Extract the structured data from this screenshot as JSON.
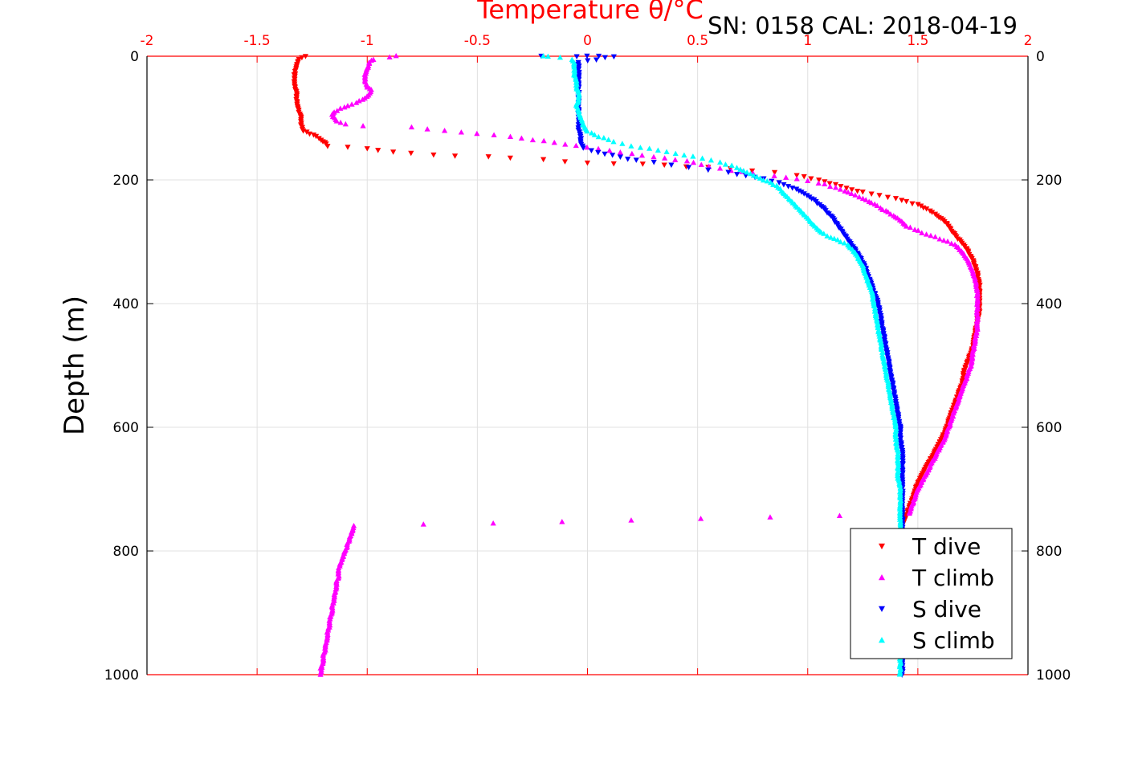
{
  "chart_data": {
    "type": "scatter",
    "title": "SN: 0158  CAL: 2018-04-19",
    "xlabel": "Temperature θ/°C",
    "ylabel": "Depth (m)",
    "xlim": [
      -2,
      2
    ],
    "ylim": [
      1000,
      0
    ],
    "x_axis_position": "top",
    "y_axis_reversed": true,
    "grid": true,
    "legend_position": "bottom-right",
    "xticks": [
      "-2",
      "-1.5",
      "-1",
      "-0.5",
      "0",
      "0.5",
      "1",
      "1.5",
      "2"
    ],
    "yticks": [
      "0",
      "200",
      "400",
      "600",
      "800",
      "1000"
    ],
    "colors": {
      "axis_x": "#ff0000",
      "axis_y": "#000000",
      "grid": "#e0e0e0"
    },
    "series": [
      {
        "name": "T dive",
        "marker": "triangle-down",
        "color": "#ff0000",
        "points": [
          [
            -1.28,
            0
          ],
          [
            -1.31,
            5
          ],
          [
            -1.32,
            15
          ],
          [
            -1.33,
            30
          ],
          [
            -1.33,
            45
          ],
          [
            -1.32,
            60
          ],
          [
            -1.32,
            75
          ],
          [
            -1.31,
            90
          ],
          [
            -1.3,
            100
          ],
          [
            -1.3,
            110
          ],
          [
            -1.29,
            120
          ],
          [
            -1.26,
            125
          ],
          [
            -1.23,
            130
          ],
          [
            -1.21,
            135
          ],
          [
            -1.19,
            140
          ],
          [
            -1.18,
            145
          ],
          [
            -1.0,
            150
          ],
          [
            -0.95,
            152
          ],
          [
            -0.88,
            155
          ],
          [
            -0.8,
            157
          ],
          [
            -0.7,
            160
          ],
          [
            -0.6,
            162
          ],
          [
            -0.45,
            163
          ],
          [
            -0.35,
            165
          ],
          [
            -0.2,
            167
          ],
          [
            -0.1,
            170
          ],
          [
            0.0,
            172
          ],
          [
            0.12,
            173
          ],
          [
            0.25,
            174
          ],
          [
            0.35,
            176
          ],
          [
            0.45,
            178
          ],
          [
            0.55,
            180
          ],
          [
            0.65,
            182
          ],
          [
            0.75,
            185
          ],
          [
            0.85,
            188
          ],
          [
            0.95,
            192
          ],
          [
            1.05,
            200
          ],
          [
            1.15,
            210
          ],
          [
            1.25,
            220
          ],
          [
            1.4,
            230
          ],
          [
            1.5,
            240
          ],
          [
            1.58,
            255
          ],
          [
            1.63,
            270
          ],
          [
            1.67,
            290
          ],
          [
            1.72,
            310
          ],
          [
            1.75,
            330
          ],
          [
            1.77,
            350
          ],
          [
            1.78,
            370
          ],
          [
            1.78,
            390
          ],
          [
            1.78,
            410
          ],
          [
            1.77,
            430
          ],
          [
            1.76,
            450
          ],
          [
            1.75,
            470
          ],
          [
            1.73,
            490
          ],
          [
            1.71,
            510
          ],
          [
            1.7,
            530
          ],
          [
            1.68,
            550
          ],
          [
            1.66,
            570
          ],
          [
            1.64,
            590
          ],
          [
            1.62,
            610
          ],
          [
            1.59,
            630
          ],
          [
            1.56,
            650
          ],
          [
            1.53,
            670
          ],
          [
            1.5,
            690
          ],
          [
            1.48,
            710
          ],
          [
            1.46,
            730
          ],
          [
            1.44,
            750
          ],
          [
            1.43,
            760
          ]
        ]
      },
      {
        "name": "T climb",
        "marker": "triangle-up",
        "color": "#ff00ff",
        "points": [
          [
            -1.21,
            1000
          ],
          [
            -1.21,
            990
          ],
          [
            -1.2,
            980
          ],
          [
            -1.2,
            970
          ],
          [
            -1.19,
            960
          ],
          [
            -1.19,
            950
          ],
          [
            -1.18,
            940
          ],
          [
            -1.18,
            930
          ],
          [
            -1.17,
            920
          ],
          [
            -1.17,
            910
          ],
          [
            -1.16,
            900
          ],
          [
            -1.16,
            890
          ],
          [
            -1.15,
            880
          ],
          [
            -1.15,
            870
          ],
          [
            -1.14,
            860
          ],
          [
            -1.14,
            850
          ],
          [
            -1.13,
            840
          ],
          [
            -1.13,
            830
          ],
          [
            -1.12,
            820
          ],
          [
            -1.11,
            810
          ],
          [
            -1.1,
            800
          ],
          [
            -1.09,
            790
          ],
          [
            -1.08,
            780
          ],
          [
            -1.07,
            770
          ],
          [
            -1.06,
            760
          ],
          [
            1.46,
            740
          ],
          [
            1.48,
            720
          ],
          [
            1.5,
            700
          ],
          [
            1.53,
            680
          ],
          [
            1.56,
            660
          ],
          [
            1.59,
            640
          ],
          [
            1.62,
            620
          ],
          [
            1.64,
            600
          ],
          [
            1.66,
            580
          ],
          [
            1.68,
            560
          ],
          [
            1.7,
            540
          ],
          [
            1.72,
            520
          ],
          [
            1.74,
            500
          ],
          [
            1.75,
            480
          ],
          [
            1.76,
            460
          ],
          [
            1.77,
            440
          ],
          [
            1.77,
            420
          ],
          [
            1.77,
            400
          ],
          [
            1.77,
            380
          ],
          [
            1.76,
            360
          ],
          [
            1.74,
            340
          ],
          [
            1.71,
            320
          ],
          [
            1.67,
            305
          ],
          [
            1.6,
            295
          ],
          [
            1.52,
            285
          ],
          [
            1.45,
            275
          ],
          [
            1.4,
            260
          ],
          [
            1.33,
            245
          ],
          [
            1.25,
            230
          ],
          [
            1.15,
            215
          ],
          [
            1.05,
            205
          ],
          [
            0.95,
            198
          ],
          [
            0.85,
            193
          ],
          [
            0.75,
            190
          ],
          [
            0.65,
            185
          ],
          [
            0.55,
            178
          ],
          [
            0.45,
            170
          ],
          [
            0.35,
            165
          ],
          [
            0.25,
            160
          ],
          [
            0.15,
            155
          ],
          [
            0.05,
            150
          ],
          [
            -0.05,
            145
          ],
          [
            -0.15,
            140
          ],
          [
            -0.25,
            135
          ],
          [
            -0.35,
            130
          ],
          [
            -0.5,
            125
          ],
          [
            -0.65,
            120
          ],
          [
            -0.8,
            115
          ],
          [
            -1.02,
            112
          ],
          [
            -1.1,
            110
          ],
          [
            -1.14,
            105
          ],
          [
            -1.15,
            100
          ],
          [
            -1.16,
            95
          ],
          [
            -1.15,
            90
          ],
          [
            -1.12,
            85
          ],
          [
            -1.09,
            80
          ],
          [
            -1.05,
            75
          ],
          [
            -1.02,
            70
          ],
          [
            -1.0,
            65
          ],
          [
            -0.99,
            60
          ],
          [
            -0.98,
            55
          ],
          [
            -1.0,
            50
          ],
          [
            -1.01,
            40
          ],
          [
            -1.01,
            30
          ],
          [
            -1.0,
            20
          ],
          [
            -0.99,
            10
          ],
          [
            -0.97,
            5
          ],
          [
            -0.9,
            2
          ],
          [
            -0.87,
            0
          ]
        ]
      },
      {
        "name": "S dive",
        "marker": "triangle-down",
        "color": "#0000ff",
        "points": [
          [
            -0.21,
            0
          ],
          [
            -0.05,
            0
          ],
          [
            0.0,
            0
          ],
          [
            0.05,
            0
          ],
          [
            0.12,
            0
          ],
          [
            -0.04,
            10
          ],
          [
            -0.04,
            20
          ],
          [
            -0.04,
            30
          ],
          [
            -0.04,
            40
          ],
          [
            -0.04,
            50
          ],
          [
            -0.04,
            60
          ],
          [
            -0.04,
            70
          ],
          [
            -0.04,
            80
          ],
          [
            -0.04,
            90
          ],
          [
            -0.04,
            100
          ],
          [
            -0.04,
            110
          ],
          [
            -0.04,
            120
          ],
          [
            -0.03,
            130
          ],
          [
            -0.03,
            140
          ],
          [
            -0.02,
            148
          ],
          [
            0.02,
            152
          ],
          [
            0.08,
            158
          ],
          [
            0.15,
            163
          ],
          [
            0.22,
            168
          ],
          [
            0.3,
            172
          ],
          [
            0.38,
            176
          ],
          [
            0.46,
            180
          ],
          [
            0.55,
            184
          ],
          [
            0.64,
            188
          ],
          [
            0.72,
            193
          ],
          [
            0.8,
            198
          ],
          [
            0.87,
            205
          ],
          [
            0.95,
            215
          ],
          [
            1.02,
            230
          ],
          [
            1.07,
            245
          ],
          [
            1.11,
            260
          ],
          [
            1.14,
            275
          ],
          [
            1.17,
            290
          ],
          [
            1.2,
            305
          ],
          [
            1.23,
            320
          ],
          [
            1.26,
            340
          ],
          [
            1.28,
            360
          ],
          [
            1.3,
            380
          ],
          [
            1.32,
            400
          ],
          [
            1.33,
            420
          ],
          [
            1.34,
            440
          ],
          [
            1.35,
            460
          ],
          [
            1.36,
            480
          ],
          [
            1.37,
            500
          ],
          [
            1.38,
            520
          ],
          [
            1.39,
            540
          ],
          [
            1.4,
            560
          ],
          [
            1.41,
            580
          ],
          [
            1.42,
            600
          ],
          [
            1.42,
            620
          ],
          [
            1.43,
            640
          ],
          [
            1.43,
            660
          ],
          [
            1.43,
            680
          ],
          [
            1.43,
            700
          ],
          [
            1.43,
            720
          ],
          [
            1.43,
            740
          ],
          [
            1.43,
            760
          ],
          [
            1.43,
            780
          ],
          [
            1.43,
            800
          ],
          [
            1.43,
            820
          ],
          [
            1.43,
            840
          ],
          [
            1.43,
            860
          ],
          [
            1.43,
            880
          ],
          [
            1.43,
            900
          ],
          [
            1.43,
            920
          ],
          [
            1.43,
            940
          ],
          [
            1.43,
            960
          ],
          [
            1.43,
            980
          ],
          [
            1.43,
            1000
          ]
        ]
      },
      {
        "name": "S climb",
        "marker": "triangle-up",
        "color": "#00ffff",
        "points": [
          [
            1.42,
            1000
          ],
          [
            1.42,
            980
          ],
          [
            1.42,
            960
          ],
          [
            1.42,
            940
          ],
          [
            1.42,
            920
          ],
          [
            1.42,
            900
          ],
          [
            1.42,
            880
          ],
          [
            1.42,
            860
          ],
          [
            1.42,
            840
          ],
          [
            1.42,
            820
          ],
          [
            1.42,
            800
          ],
          [
            1.42,
            780
          ],
          [
            1.42,
            760
          ],
          [
            1.42,
            740
          ],
          [
            1.42,
            720
          ],
          [
            1.42,
            700
          ],
          [
            1.41,
            680
          ],
          [
            1.41,
            660
          ],
          [
            1.41,
            640
          ],
          [
            1.4,
            620
          ],
          [
            1.4,
            600
          ],
          [
            1.39,
            580
          ],
          [
            1.38,
            560
          ],
          [
            1.37,
            540
          ],
          [
            1.36,
            520
          ],
          [
            1.35,
            500
          ],
          [
            1.34,
            480
          ],
          [
            1.33,
            460
          ],
          [
            1.32,
            440
          ],
          [
            1.31,
            420
          ],
          [
            1.3,
            400
          ],
          [
            1.29,
            380
          ],
          [
            1.27,
            360
          ],
          [
            1.25,
            340
          ],
          [
            1.22,
            320
          ],
          [
            1.18,
            305
          ],
          [
            1.12,
            295
          ],
          [
            1.06,
            285
          ],
          [
            1.02,
            270
          ],
          [
            0.98,
            255
          ],
          [
            0.94,
            240
          ],
          [
            0.9,
            225
          ],
          [
            0.86,
            210
          ],
          [
            0.8,
            200
          ],
          [
            0.74,
            190
          ],
          [
            0.68,
            180
          ],
          [
            0.6,
            172
          ],
          [
            0.52,
            165
          ],
          [
            0.44,
            160
          ],
          [
            0.36,
            155
          ],
          [
            0.28,
            150
          ],
          [
            0.2,
            145
          ],
          [
            0.12,
            138
          ],
          [
            0.05,
            130
          ],
          [
            0.0,
            122
          ],
          [
            -0.02,
            112
          ],
          [
            -0.03,
            100
          ],
          [
            -0.04,
            90
          ],
          [
            -0.05,
            80
          ],
          [
            -0.04,
            70
          ],
          [
            -0.04,
            60
          ],
          [
            -0.05,
            50
          ],
          [
            -0.05,
            40
          ],
          [
            -0.06,
            30
          ],
          [
            -0.06,
            20
          ],
          [
            -0.06,
            10
          ],
          [
            -0.07,
            5
          ],
          [
            -0.18,
            0
          ],
          [
            -0.2,
            0
          ]
        ]
      }
    ]
  }
}
